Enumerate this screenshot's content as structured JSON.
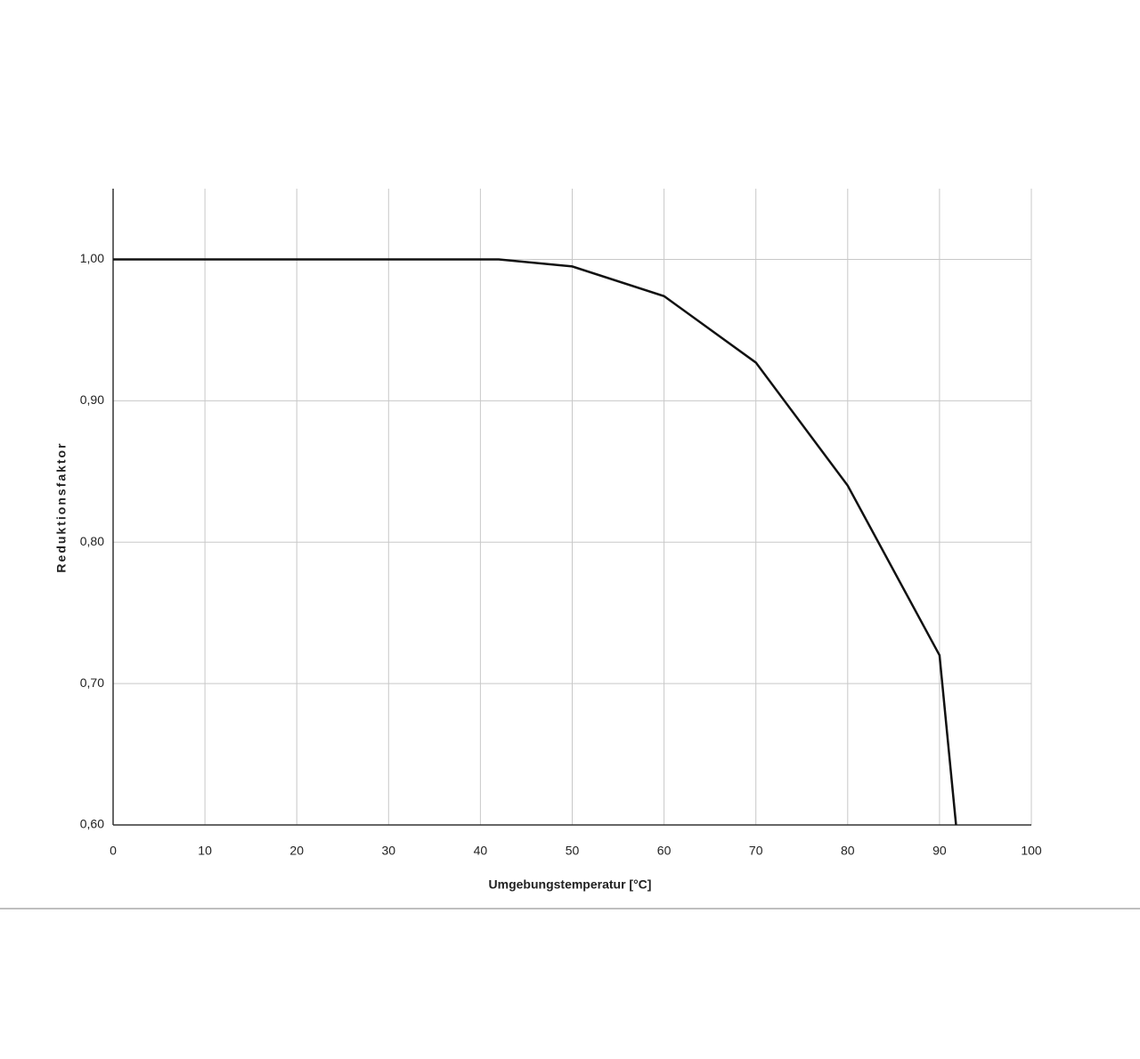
{
  "chart_data": {
    "type": "line",
    "x_label": "Umgebungstemperatur [°C]",
    "y_label": "Reduktionsfaktor",
    "series": [
      {
        "name": "Reduktionsfaktor",
        "color": "#111111",
        "x": [
          0,
          42,
          50,
          60,
          70,
          80,
          90,
          91.8
        ],
        "values": [
          1.0,
          1.0,
          0.995,
          0.974,
          0.927,
          0.84,
          0.72,
          0.6
        ]
      }
    ],
    "xlim": [
      0,
      100
    ],
    "xticks": [
      0,
      10,
      20,
      30,
      40,
      50,
      60,
      70,
      80,
      90,
      100
    ],
    "ylim": [
      0.6,
      1.05
    ],
    "yticks": [
      {
        "value": 0.6,
        "label": "0,60"
      },
      {
        "value": 0.7,
        "label": "0,70"
      },
      {
        "value": 0.8,
        "label": "0,80"
      },
      {
        "value": 0.9,
        "label": "0,90"
      },
      {
        "value": 1.0,
        "label": "1,00"
      }
    ],
    "grid": true
  }
}
